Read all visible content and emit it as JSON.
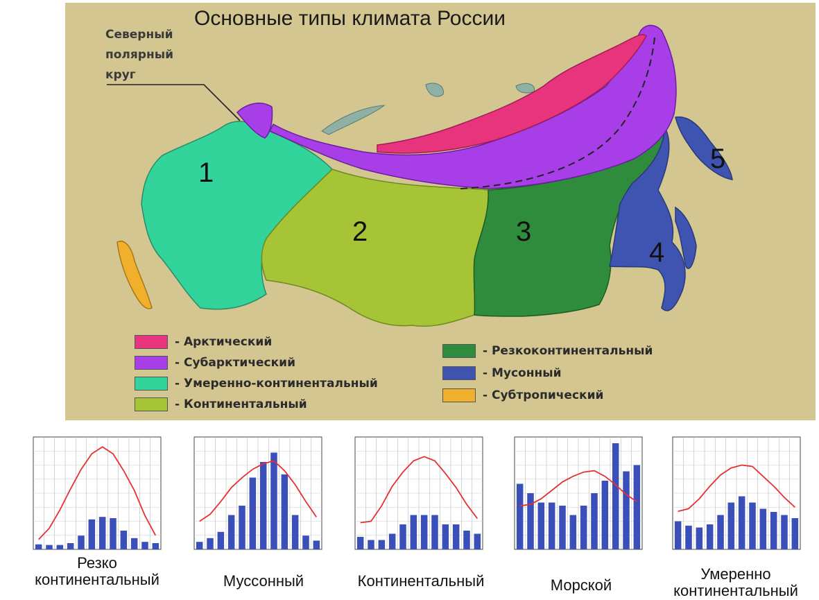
{
  "map": {
    "title": "Основные типы климата России",
    "polar_circle_label": [
      "Северный",
      "полярный",
      "круг"
    ],
    "colors": {
      "background": "#d3c690",
      "arctic": "#e8347c",
      "subarctic": "#a83ee8",
      "temperate_continental": "#33d49c",
      "continental": "#a6c436",
      "sharply_continental": "#2f8c3c",
      "monsoon": "#3f54b0",
      "subtropical": "#f0b02c",
      "sea": "#8fb0a4"
    },
    "region_numbers": [
      "1",
      "2",
      "3",
      "4",
      "5"
    ],
    "legend_left": [
      {
        "label": "- Арктический",
        "color": "#e8347c"
      },
      {
        "label": "- Субарктический",
        "color": "#a83ee8"
      },
      {
        "label": "- Умеренно-континентальный",
        "color": "#33d49c"
      },
      {
        "label": "- Континентальный",
        "color": "#a6c436"
      }
    ],
    "legend_right": [
      {
        "label": "- Резкоконтинентальный",
        "color": "#2f8c3c"
      },
      {
        "label": "- Мусонный",
        "color": "#3f54b0"
      },
      {
        "label": "- Субтропический",
        "color": "#f0b02c"
      }
    ]
  },
  "climograms": [
    {
      "caption": [
        "Резко",
        "континентальный"
      ],
      "temperature": [
        -33,
        -25,
        -12,
        3,
        17,
        28,
        33,
        28,
        16,
        2,
        -16,
        -30
      ],
      "precipitation": [
        8,
        7,
        7,
        10,
        22,
        48,
        52,
        50,
        30,
        18,
        12,
        10
      ]
    },
    {
      "caption": [
        "Муссонный"
      ],
      "temperature": [
        -20,
        -15,
        -6,
        4,
        11,
        17,
        21,
        23,
        16,
        6,
        -6,
        -17
      ],
      "precipitation": [
        12,
        18,
        28,
        55,
        70,
        115,
        140,
        155,
        120,
        55,
        22,
        14
      ]
    },
    {
      "caption": [
        "Континентальный"
      ],
      "temperature": [
        -21,
        -20,
        -9,
        5,
        15,
        23,
        26,
        23,
        14,
        4,
        -8,
        -18
      ],
      "precipitation": [
        20,
        15,
        15,
        25,
        40,
        55,
        55,
        55,
        40,
        40,
        30,
        25
      ]
    },
    {
      "caption": [
        "Морской"
      ],
      "temperature": [
        -9,
        -8,
        -4,
        2,
        8,
        12,
        15,
        16,
        12,
        6,
        -1,
        -6
      ],
      "precipitation": [
        105,
        90,
        75,
        75,
        70,
        55,
        70,
        90,
        110,
        170,
        125,
        135
      ]
    },
    {
      "caption": [
        "Умеренно",
        "континентальный"
      ],
      "temperature": [
        -13,
        -11,
        -4,
        5,
        13,
        18,
        20,
        19,
        12,
        5,
        -3,
        -10
      ],
      "precipitation": [
        45,
        38,
        35,
        40,
        55,
        75,
        85,
        75,
        65,
        60,
        55,
        50
      ]
    }
  ]
}
